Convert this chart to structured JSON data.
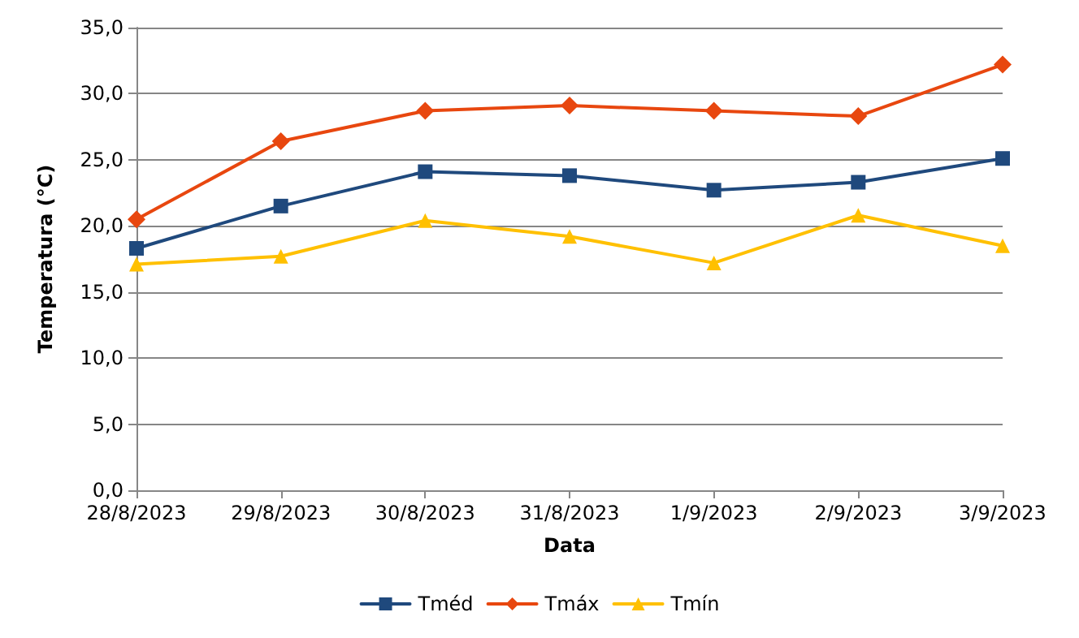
{
  "chart_data": {
    "type": "line",
    "xlabel": "Data",
    "ylabel": "Temperatura (°C)",
    "categories": [
      "28/8/2023",
      "29/8/2023",
      "30/8/2023",
      "31/8/2023",
      "1/9/2023",
      "2/9/2023",
      "3/9/2023"
    ],
    "series": [
      {
        "name": "Tméd",
        "color": "#1f497d",
        "marker": "square",
        "values": [
          18.3,
          21.5,
          24.1,
          23.8,
          22.7,
          23.3,
          25.1
        ]
      },
      {
        "name": "Tmáx",
        "color": "#e8470f",
        "marker": "diamond",
        "values": [
          20.5,
          26.4,
          28.7,
          29.1,
          28.7,
          28.3,
          32.2
        ]
      },
      {
        "name": "Tmín",
        "color": "#ffc000",
        "marker": "triangle",
        "values": [
          17.1,
          17.7,
          20.4,
          19.2,
          17.2,
          20.8,
          18.5
        ]
      }
    ],
    "ylim": [
      0,
      35
    ],
    "yticks": [
      {
        "value": 0,
        "label": "0,0"
      },
      {
        "value": 5,
        "label": "5,0"
      },
      {
        "value": 10,
        "label": "10,0"
      },
      {
        "value": 15,
        "label": "15,0"
      },
      {
        "value": 20,
        "label": "20,0"
      },
      {
        "value": 25,
        "label": "25,0"
      },
      {
        "value": 30,
        "label": "30,0"
      },
      {
        "value": 35,
        "label": "35,0"
      }
    ],
    "grid": "y",
    "legend": "bottom",
    "line_style": "solid"
  }
}
